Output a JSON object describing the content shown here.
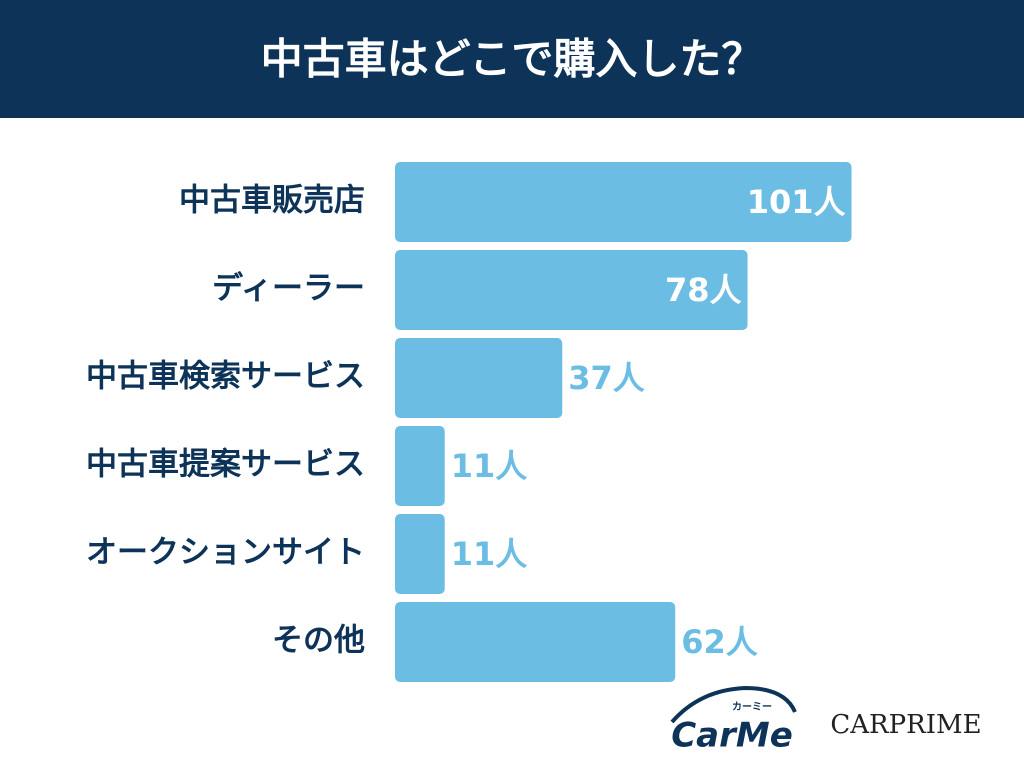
{
  "chart_data": {
    "type": "bar",
    "orientation": "horizontal",
    "title": "中古車はどこで購入した？",
    "categories": [
      "中古車販売店",
      "ディーラー",
      "中古車検索サービス",
      "中古車提案サービス",
      "オークションサイト",
      "その他"
    ],
    "values": [
      101,
      78,
      37,
      11,
      11,
      62
    ],
    "value_labels": [
      "101人",
      "78人",
      "37人",
      "11人",
      "11人",
      "62人"
    ],
    "color": "#6bbde3"
  },
  "logos": {
    "carme": "CarMe",
    "carme_kana": "カーミー",
    "carprime": "CARPRIME"
  }
}
